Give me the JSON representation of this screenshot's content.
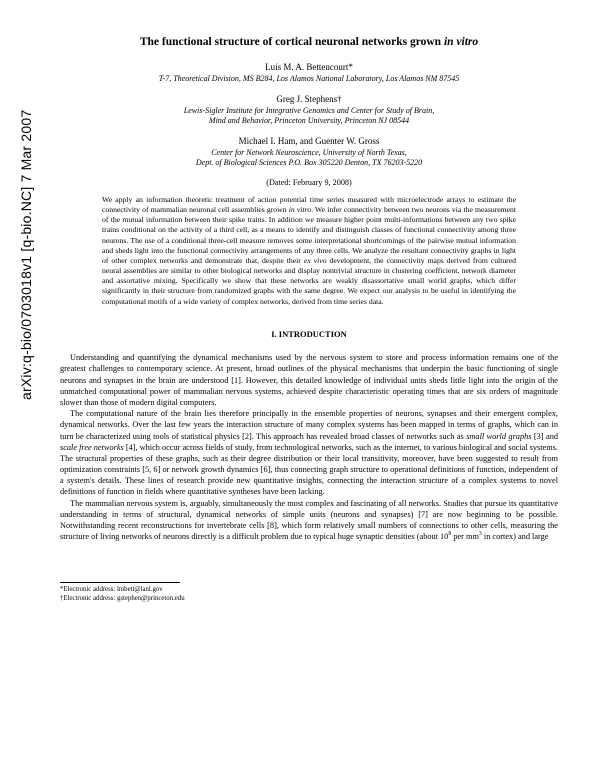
{
  "arxiv": "arXiv:q-bio/0703018v1  [q-bio.NC]  7 Mar 2007",
  "title_main": "The functional structure of cortical neuronal networks grown ",
  "title_italic": "in vitro",
  "authors": [
    {
      "name": "Luís M. A. Bettencourt*",
      "affil": "T-7, Theoretical Division, MS B284, Los Alamos National Laboratory, Los Alamos NM 87545"
    },
    {
      "name": "Greg J. Stephens†",
      "affil": "Lewis-Sigler Institute for Integrative Genomics and Center for Study of Brain,\nMind and Behavior, Princeton University, Princeton NJ 08544"
    },
    {
      "name": "Michael I. Ham, and Guenter W. Gross",
      "affil": "Center for Network Neuroscience, University of North Texas,\nDept. of Biological Sciences P.O. Box 305220 Denton, TX 76203-5220"
    }
  ],
  "dated": "(Dated: February 9, 2008)",
  "abstract_pre": "We apply an information theoretic treatment of action potential time series measured with microelectrode arrays to estimate the connectivity of mammalian neuronal cell assemblies grown ",
  "abstract_it1": "in vitro",
  "abstract_mid": ". We infer connectivity between two neurons via the measurement of the mutual information between their spike trains. In addition we measure higher point multi-informations between any two spike trains conditional on the activity of a third cell, as a means to identify and distinguish classes of functional connectivity among three neurons. The use of a conditional three-cell measure removes some interpretational shortcomings of the pairwise mutual information and sheds light into the functional connectivity arrangements of any three cells. We analyze the resultant connectivity graphs in light of other complex networks and demonstrate that, despite their ",
  "abstract_it2": "ex vivo",
  "abstract_post": " development, the connectivity maps derived from cultured neural assemblies are similar to other biological networks and display nontrivial structure in clustering coefficient, network diameter and assortative mixing. Specifically we show that these networks are weakly disassortative small world graphs, which differ significantly in their structure from randomized graphs with the same degree. We expect our analysis to be useful in identifying the computational motifs of a wide variety of complex networks, derived from time series data.",
  "section1": "I.   INTRODUCTION",
  "para1_pre": "Understanding and quantifying the dynamical mechanisms used by the nervous system to store and process information remains one of the greatest challenges to contemporary science. At present, broad outlines of the physical mechanisms that underpin the basic functioning of single neurons and synapses in the brain are understood [1]. However, this detailed knowledge of individual units sheds little light into the origin of the unmatched computational power of mammalian nervous systems, achieved despite characteristic operating times that are six orders of magnitude slower than those of modern digital computers.",
  "para2_pre": "The computational nature of the brain lies therefore principally in the ensemble properties of neurons, synapses and their emergent complex, dynamical networks. Over the last few years the interaction structure of many complex systems has been mapped in terms of graphs, which can in turn be characterized using tools of statistical physics [2]. This approach has revealed broad classes of networks such as ",
  "para2_it1": "small world graphs",
  "para2_mid": " [3] and ",
  "para2_it2": "scale free networks",
  "para2_post": " [4], which occur across fields of study, from technological networks, such as the internet, to various biological and social systems. The structural properties of these graphs, such as their degree distribution or their local transitivity, moreover, have been suggested to result from optimization constraints [5, 6] or network growth dynamics [6], thus connecting graph structure to operational definitions of function, independent of a system's details. These lines of research provide new quantitative insights, connecting the interaction structure of a complex systems to novel definitions of function in fields where quantitative syntheses have been lacking.",
  "para3": "The mammalian nervous system is, arguably, simultaneously the most complex and fascinating of all networks. Studies that pursue its quantitative understanding in terms of structural, dynamical networks of simple units (neurons and synapses) [7] are now beginning to be possible. Notwithstanding recent reconstructions for invertebrate cells [8], which form relatively small numbers of connections to other cells, measuring the structure of living networks of neurons directly is a difficult problem due to typical huge synaptic densities (about 10",
  "para3_sup1": "8",
  "para3_mid": " per mm",
  "para3_sup2": "3",
  "para3_end": " in cortex) and large",
  "fn1": "*Electronic address: lmbett@lanl.gov",
  "fn2": "†Electronic address: gstephen@princeton.edu"
}
